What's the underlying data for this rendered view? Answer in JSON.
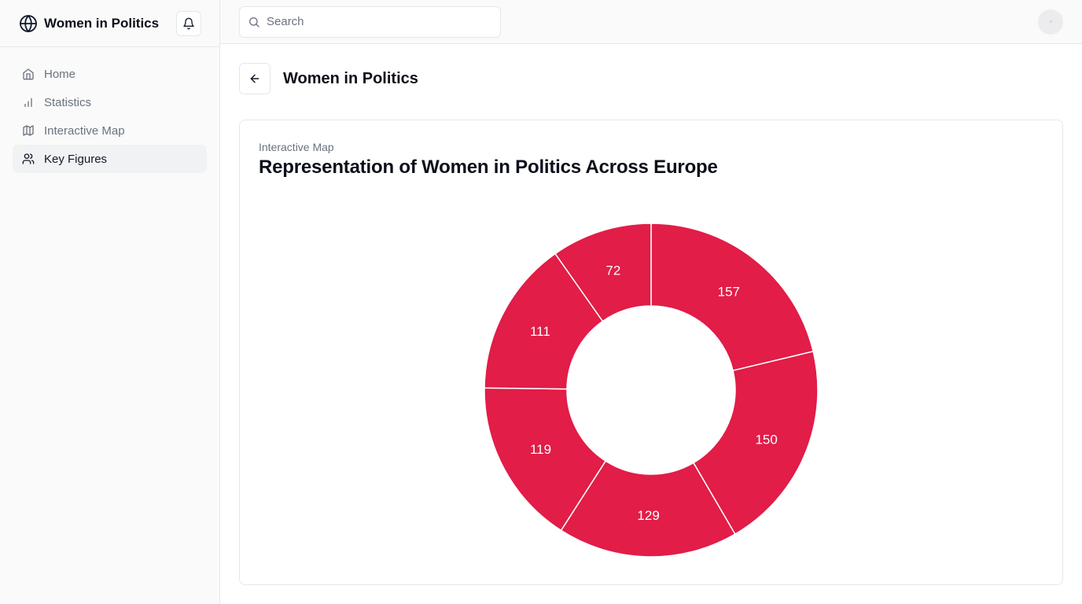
{
  "sidebar": {
    "brand": "Women in Politics",
    "items": [
      {
        "label": "Home",
        "icon": "home-icon",
        "active": false
      },
      {
        "label": "Statistics",
        "icon": "bar-chart-icon",
        "active": false
      },
      {
        "label": "Interactive Map",
        "icon": "map-icon",
        "active": false
      },
      {
        "label": "Key Figures",
        "icon": "users-icon",
        "active": true
      }
    ]
  },
  "topbar": {
    "search_placeholder": "Search"
  },
  "page": {
    "title": "Women in Politics"
  },
  "card": {
    "eyebrow": "Interactive Map",
    "title": "Representation of Women in Politics Across Europe"
  },
  "colors": {
    "slice": "#e11d48"
  },
  "chart_data": {
    "type": "pie",
    "donut": true,
    "values": [
      157,
      150,
      129,
      119,
      111,
      72
    ],
    "data_labels": [
      "157",
      "150",
      "129",
      "119",
      "111",
      "72"
    ]
  }
}
